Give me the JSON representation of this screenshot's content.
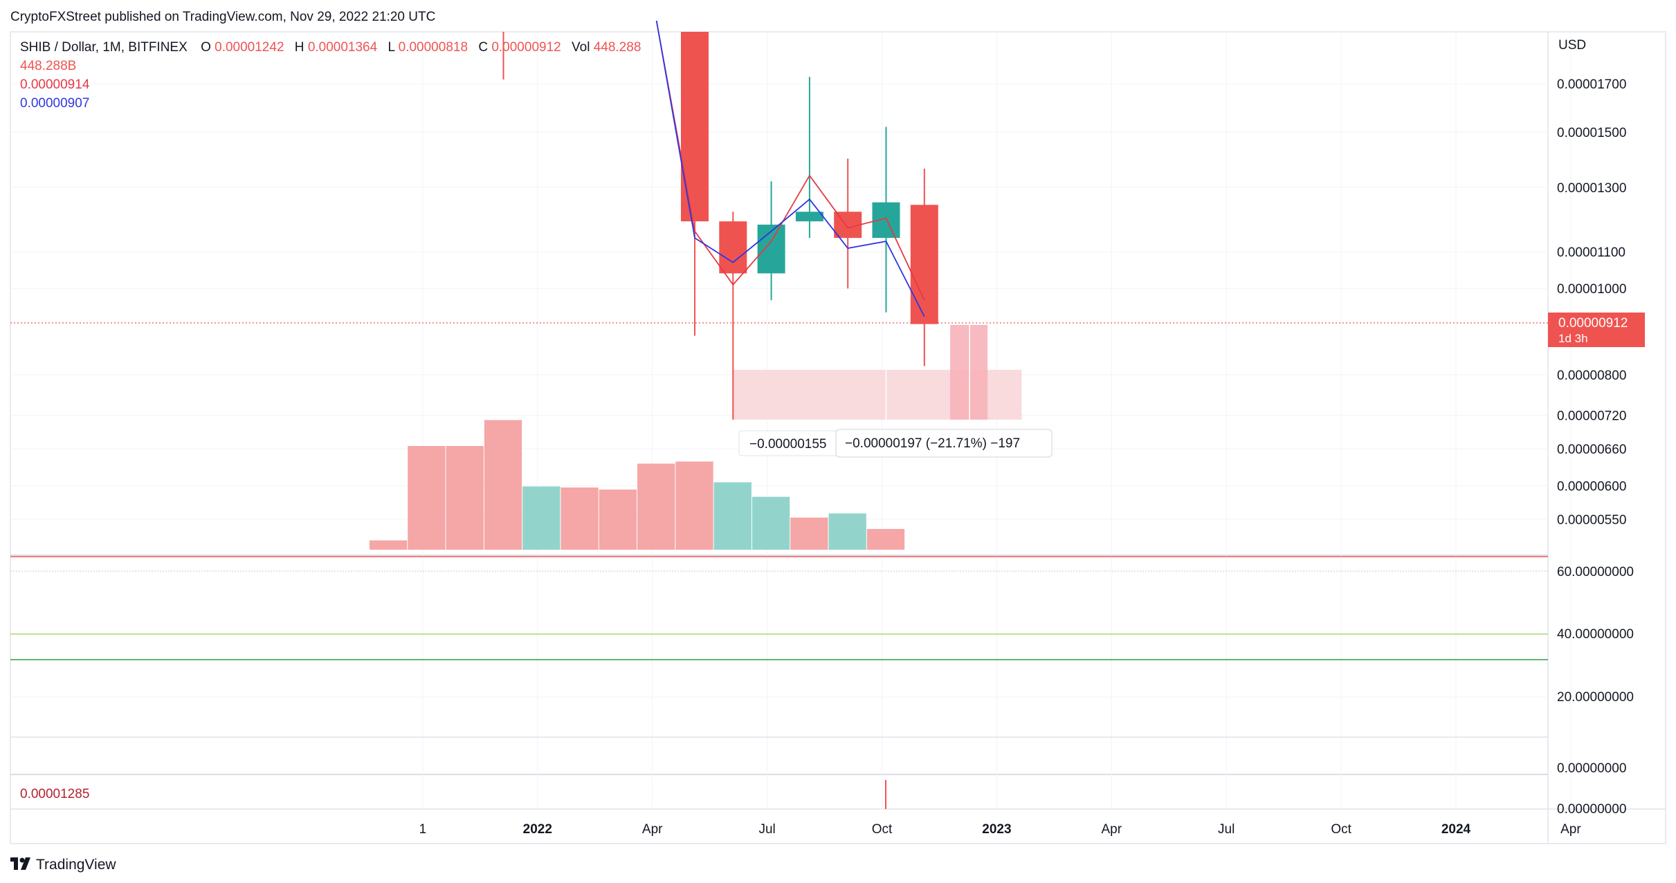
{
  "header": {
    "published_by": "CryptoFXStreet published on TradingView.com, Nov 29, 2022 21:20 UTC"
  },
  "legend": {
    "symbol": "SHIB / Dollar, 1M, BITFINEX",
    "open_label": "O",
    "open_value": "0.00001242",
    "high_label": "H",
    "high_value": "0.00001364",
    "low_label": "L",
    "low_value": "0.00000818",
    "close_label": "C",
    "close_value": "0.00000912",
    "vol_label": "Vol",
    "vol_value": "448.288",
    "line2": "448.288B",
    "line3": "0.00000914",
    "line4": "0.00000907"
  },
  "price_axis": {
    "currency": "USD",
    "last_price": "0.00000912",
    "countdown": "1d 3h"
  },
  "measure": {
    "label1": "−0.00000155",
    "label2": "−0.00000197 (−21.71%) −197"
  },
  "rsi_panel": {
    "levels": [
      60,
      40,
      20
    ]
  },
  "lower_panel": {
    "value": "0.00001285"
  },
  "footer": {
    "brand": "TradingView"
  },
  "colors": {
    "up": "#26a69a",
    "down": "#ef5350",
    "vol_down": "#f5a6a6",
    "vol_up": "#92d4cc",
    "sma_red": "#e53945",
    "sma_blue": "#2e36e0",
    "zone": "#f8d3d7",
    "zone_dark": "#f6b3b9"
  },
  "chart_data": [
    {
      "type": "candlestick",
      "title": "SHIB / Dollar, 1M, BITFINEX",
      "ylabel": "USD",
      "scale": "log",
      "ylim": [
        5e-06,
        1.95e-05
      ],
      "yticks": [
        "0.00001700",
        "0.00001500",
        "0.00001300",
        "0.00001100",
        "0.00001000",
        "0.00000800",
        "0.00000720",
        "0.00000660",
        "0.00000600",
        "0.00000550"
      ],
      "xticks": [
        {
          "label": "1",
          "bold": false
        },
        {
          "label": "2022",
          "bold": true
        },
        {
          "label": "Apr",
          "bold": false
        },
        {
          "label": "Jul",
          "bold": false
        },
        {
          "label": "Oct",
          "bold": false
        },
        {
          "label": "2023",
          "bold": true
        },
        {
          "label": "Apr",
          "bold": false
        },
        {
          "label": "Jul",
          "bold": false
        },
        {
          "label": "Oct",
          "bold": false
        },
        {
          "label": "2024",
          "bold": true
        },
        {
          "label": "Apr",
          "bold": false
        }
      ],
      "candles": [
        {
          "month": "2022-05",
          "open": 2.05e-05,
          "high": 2.05e-05,
          "low": 8.85e-06,
          "close": 1.19e-05
        },
        {
          "month": "2022-06",
          "open": 1.19e-05,
          "high": 1.22e-05,
          "low": 7.12e-06,
          "close": 1.04e-05
        },
        {
          "month": "2022-07",
          "open": 1.04e-05,
          "high": 1.32e-05,
          "low": 9.7e-06,
          "close": 1.18e-05
        },
        {
          "month": "2022-08",
          "open": 1.19e-05,
          "high": 1.73e-05,
          "low": 1.14e-05,
          "close": 1.22e-05
        },
        {
          "month": "2022-09",
          "open": 1.22e-05,
          "high": 1.4e-05,
          "low": 1e-05,
          "close": 1.14e-05
        },
        {
          "month": "2022-10",
          "open": 1.14e-05,
          "high": 1.52e-05,
          "low": 9.4e-06,
          "close": 1.25e-05
        },
        {
          "month": "2022-11",
          "open": 1.242e-05,
          "high": 1.364e-05,
          "low": 8.18e-06,
          "close": 9.12e-06
        }
      ],
      "volume_months": [
        "2021-09",
        "2021-10",
        "2021-11",
        "2021-12",
        "2022-01",
        "2022-02",
        "2022-03",
        "2022-04",
        "2022-05",
        "2022-06",
        "2022-07",
        "2022-08",
        "2022-09",
        "2022-10",
        "2022-11"
      ],
      "volume_relative": [
        0.09,
        1.0,
        1.0,
        1.25,
        0.61,
        0.6,
        0.58,
        0.83,
        0.85,
        0.65,
        0.51,
        0.31,
        0.35,
        0.2,
        0
      ],
      "volume_direction": [
        "down",
        "down",
        "down",
        "down",
        "up",
        "down",
        "down",
        "down",
        "down",
        "up",
        "up",
        "down",
        "up",
        "down",
        "down"
      ],
      "sma_red": [
        {
          "month": "2022-04",
          "value": 2.05e-05
        },
        {
          "month": "2022-05",
          "value": 1.16e-05
        },
        {
          "month": "2022-06",
          "value": 1.01e-05
        },
        {
          "month": "2022-07",
          "value": 1.13e-05
        },
        {
          "month": "2022-08",
          "value": 1.34e-05
        },
        {
          "month": "2022-09",
          "value": 1.17e-05
        },
        {
          "month": "2022-10",
          "value": 1.2e-05
        },
        {
          "month": "2022-11",
          "value": 9.7e-06
        }
      ],
      "sma_blue": [
        {
          "month": "2022-04",
          "value": 2.05e-05
        },
        {
          "month": "2022-05",
          "value": 1.14e-05
        },
        {
          "month": "2022-06",
          "value": 1.07e-05
        },
        {
          "month": "2022-07",
          "value": 1.16e-05
        },
        {
          "month": "2022-08",
          "value": 1.26e-05
        },
        {
          "month": "2022-09",
          "value": 1.11e-05
        },
        {
          "month": "2022-10",
          "value": 1.13e-05
        },
        {
          "month": "2022-11",
          "value": 9.3e-06
        }
      ]
    }
  ]
}
